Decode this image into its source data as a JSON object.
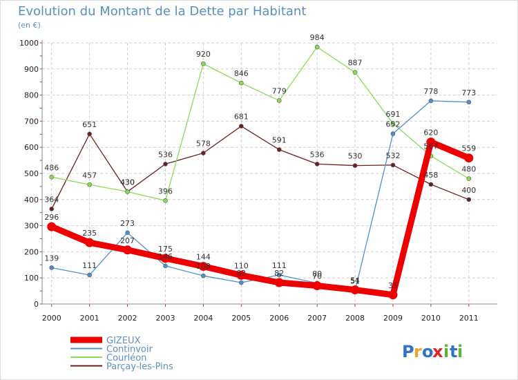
{
  "chart_data": {
    "type": "line",
    "title": "Evolution du Montant de la Dette par Habitant",
    "unit_label": "(en €)",
    "x": [
      "2000",
      "2001",
      "2002",
      "2003",
      "2004",
      "2005",
      "2006",
      "2007",
      "2008",
      "2009",
      "2010",
      "2011"
    ],
    "ylim": [
      0,
      1000
    ],
    "yticks": [
      0,
      100,
      200,
      300,
      400,
      500,
      600,
      700,
      800,
      900,
      1000
    ],
    "grid": true,
    "legend_position": "bottom-left",
    "series": [
      {
        "name": "GIZEUX",
        "color": "#ee0000",
        "values": [
          296,
          235,
          207,
          175,
          144,
          110,
          82,
          70,
          54,
          35,
          620,
          559
        ]
      },
      {
        "name": "Continvoir",
        "color": "#4f8fcc",
        "values": [
          139,
          111,
          273,
          146,
          108,
          82,
          111,
          80,
          51,
          652,
          778,
          773
        ]
      },
      {
        "name": "Courléon",
        "color": "#88dd55",
        "values": [
          486,
          457,
          430,
          396,
          920,
          846,
          779,
          984,
          887,
          691,
          567,
          480
        ]
      },
      {
        "name": "Parçay-les-Pins",
        "color": "#6b1f1f",
        "values": [
          364,
          651,
          430,
          536,
          578,
          681,
          591,
          536,
          530,
          532,
          458,
          400
        ]
      }
    ]
  },
  "brand": {
    "text": "Proxiti",
    "letters": [
      "P",
      "r",
      "o",
      "x",
      "i",
      "t",
      "i"
    ],
    "colors": [
      "#2e73c9",
      "#e8a62b",
      "#2e73c9",
      "#e02424",
      "#5fb336",
      "#2e73c9",
      "#5fb336"
    ]
  }
}
